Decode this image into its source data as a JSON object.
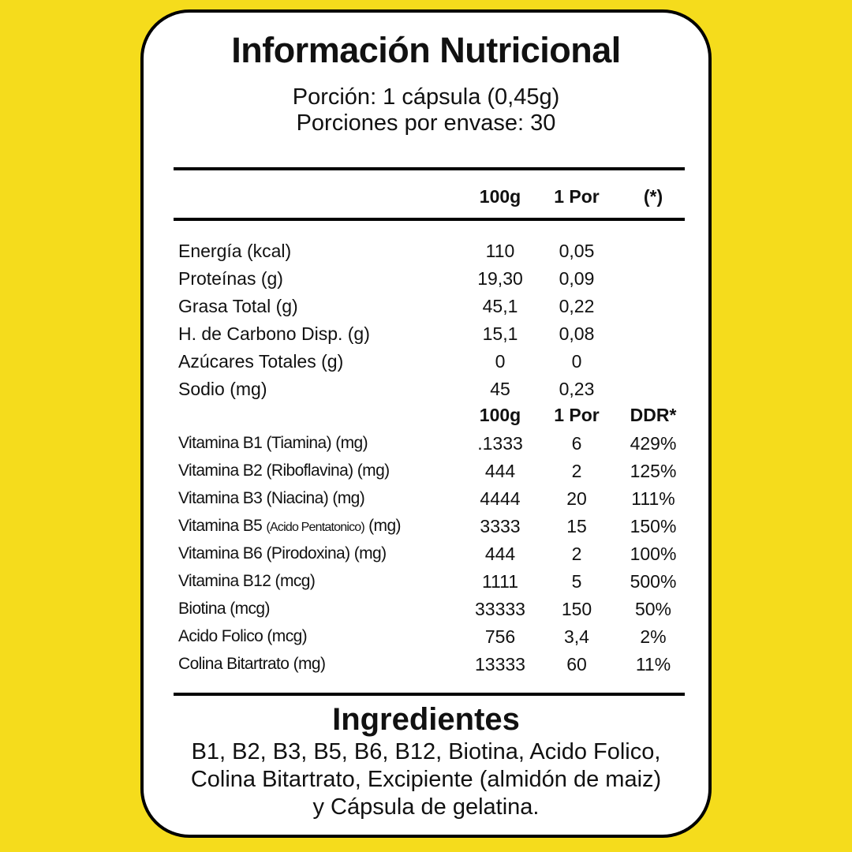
{
  "colors": {
    "background": "#F5DC1C",
    "card": "#FFFFFF",
    "text": "#111111"
  },
  "title": "Información Nutricional",
  "serving": "Porción: 1 cápsula (0,45g)",
  "servings_per_container": "Porciones por envase: 30",
  "header": {
    "col1": "100g",
    "col2": "1 Por",
    "col3": "(*)"
  },
  "nutrients": [
    {
      "label": "Energía (kcal)",
      "per100": "110",
      "perServing": "0,05"
    },
    {
      "label": "Proteínas (g)",
      "per100": "19,30",
      "perServing": "0,09"
    },
    {
      "label": "Grasa Total (g)",
      "per100": "45,1",
      "perServing": "0,22"
    },
    {
      "label": "H. de Carbono Disp. (g)",
      "per100": "15,1",
      "perServing": "0,08"
    },
    {
      "label": "Azúcares Totales (g)",
      "per100": "0",
      "perServing": "0"
    },
    {
      "label": "Sodio (mg)",
      "per100": "45",
      "perServing": "0,23"
    }
  ],
  "vitamin_header": {
    "col1": "100g",
    "col2": "1 Por",
    "col3": "DDR*"
  },
  "vitamins": [
    {
      "label": "Vitamina B1 (Tiamina) (mg)",
      "per100": ".1333",
      "perServing": "6",
      "ddr": "429%"
    },
    {
      "label": "Vitamina B2 (Riboflavina) (mg)",
      "per100": "444",
      "perServing": "2",
      "ddr": "125%"
    },
    {
      "label": "Vitamina B3 (Niacina) (mg)",
      "per100": "4444",
      "perServing": "20",
      "ddr": "111%"
    },
    {
      "label_a": "Vitamina B5 ",
      "label_b": "(Acido Pentatonico)",
      "label_c": " (mg)",
      "per100": "3333",
      "perServing": "15",
      "ddr": "150%"
    },
    {
      "label": "Vitamina B6 (Pirodoxina) (mg)",
      "per100": "444",
      "perServing": "2",
      "ddr": "100%"
    },
    {
      "label": "Vitamina B12 (mcg)",
      "per100": "1111",
      "perServing": "5",
      "ddr": "500%"
    },
    {
      "label": "Biotina (mcg)",
      "per100": "33333",
      "perServing": "150",
      "ddr": "50%"
    },
    {
      "label": "Acido Folico (mcg)",
      "per100": "756",
      "perServing": "3,4",
      "ddr": "2%"
    },
    {
      "label": "Colina Bitartrato (mg)",
      "per100": "13333",
      "perServing": "60",
      "ddr": "11%"
    }
  ],
  "ingredients": {
    "title": "Ingredientes",
    "text": "B1, B2, B3, B5, B6, B12, Biotina, Acido Folico, Colina Bitartrato, Excipiente (almidón de maiz) y Cápsula de gelatina."
  }
}
